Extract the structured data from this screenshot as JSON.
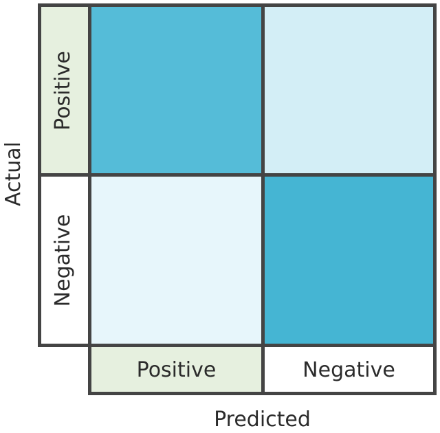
{
  "axes": {
    "y_title": "Actual",
    "x_title": "Predicted"
  },
  "rows": [
    {
      "label": "Positive"
    },
    {
      "label": "Negative"
    }
  ],
  "columns": [
    {
      "label": "Positive"
    },
    {
      "label": "Negative"
    }
  ],
  "colors": {
    "border": "#444444",
    "positive_label_bg": "#e6f0df",
    "negative_label_bg": "#ffffff",
    "cell_pos_pos": "#55bcd8",
    "cell_pos_neg": "#d3eef6",
    "cell_neg_pos": "#e7f6fb",
    "cell_neg_neg": "#45b5d3"
  }
}
